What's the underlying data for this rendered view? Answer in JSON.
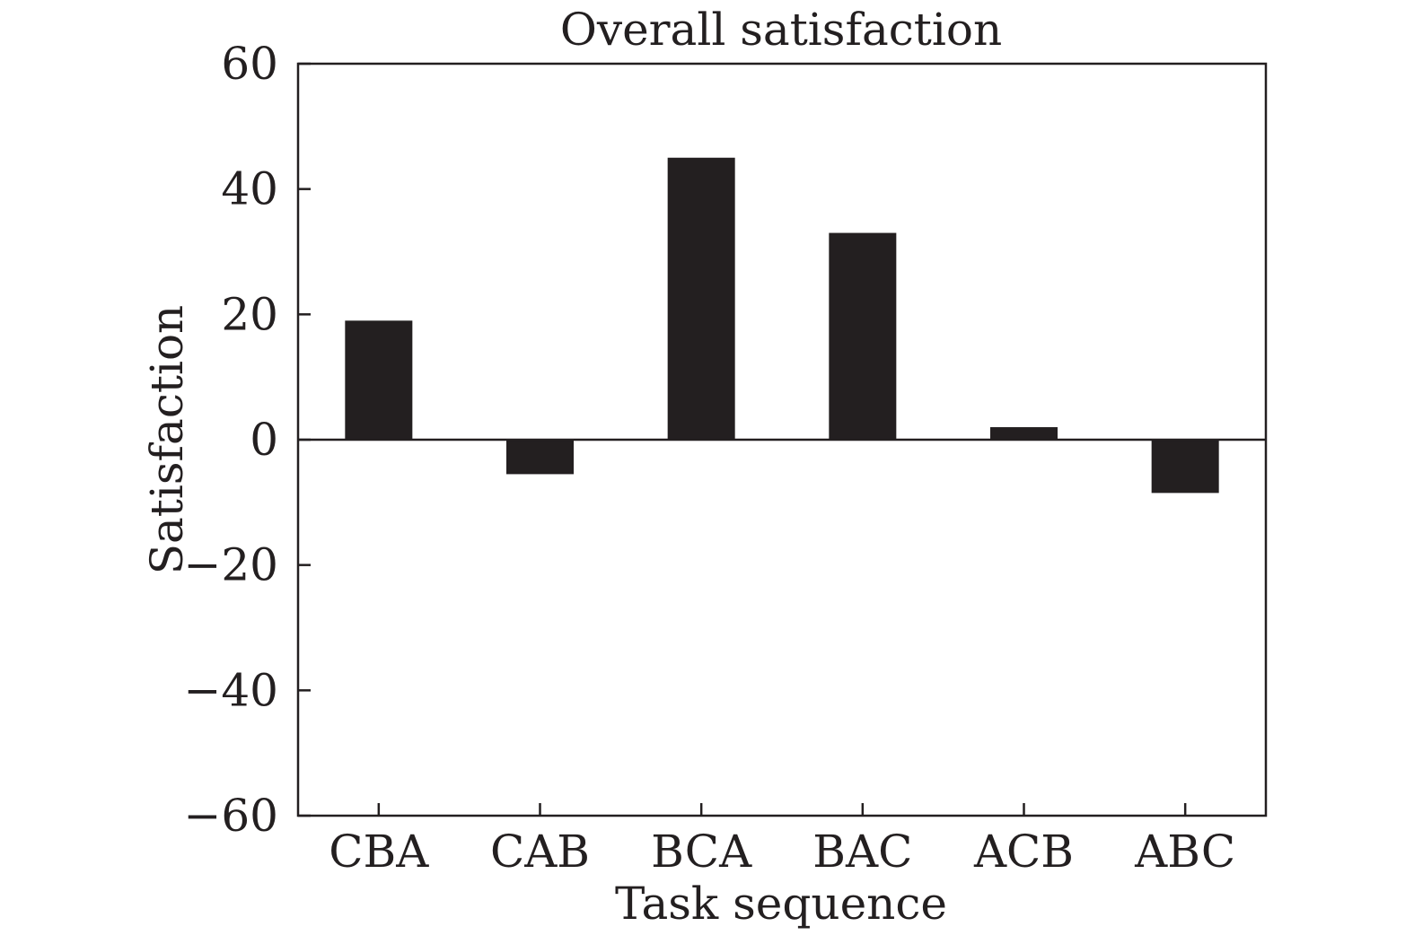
{
  "chart_data": {
    "type": "bar",
    "title": "Overall satisfaction",
    "xlabel": "Task sequence",
    "ylabel": "Satisfaction",
    "categories": [
      "CBA",
      "CAB",
      "BCA",
      "BAC",
      "ACB",
      "ABC"
    ],
    "values": [
      19,
      -5.5,
      45,
      33,
      2,
      -8.5
    ],
    "ylim": [
      -60,
      60
    ],
    "yticks": [
      {
        "value": 60,
        "label": "60"
      },
      {
        "value": 40,
        "label": "40"
      },
      {
        "value": 20,
        "label": "20"
      },
      {
        "value": 0,
        "label": "0"
      },
      {
        "value": -20,
        "label": "−20"
      },
      {
        "value": -40,
        "label": "−40"
      },
      {
        "value": -60,
        "label": "−60"
      }
    ],
    "bar_color": "#231f20",
    "axis_color": "#231f20",
    "grid": false,
    "legend": "none"
  }
}
